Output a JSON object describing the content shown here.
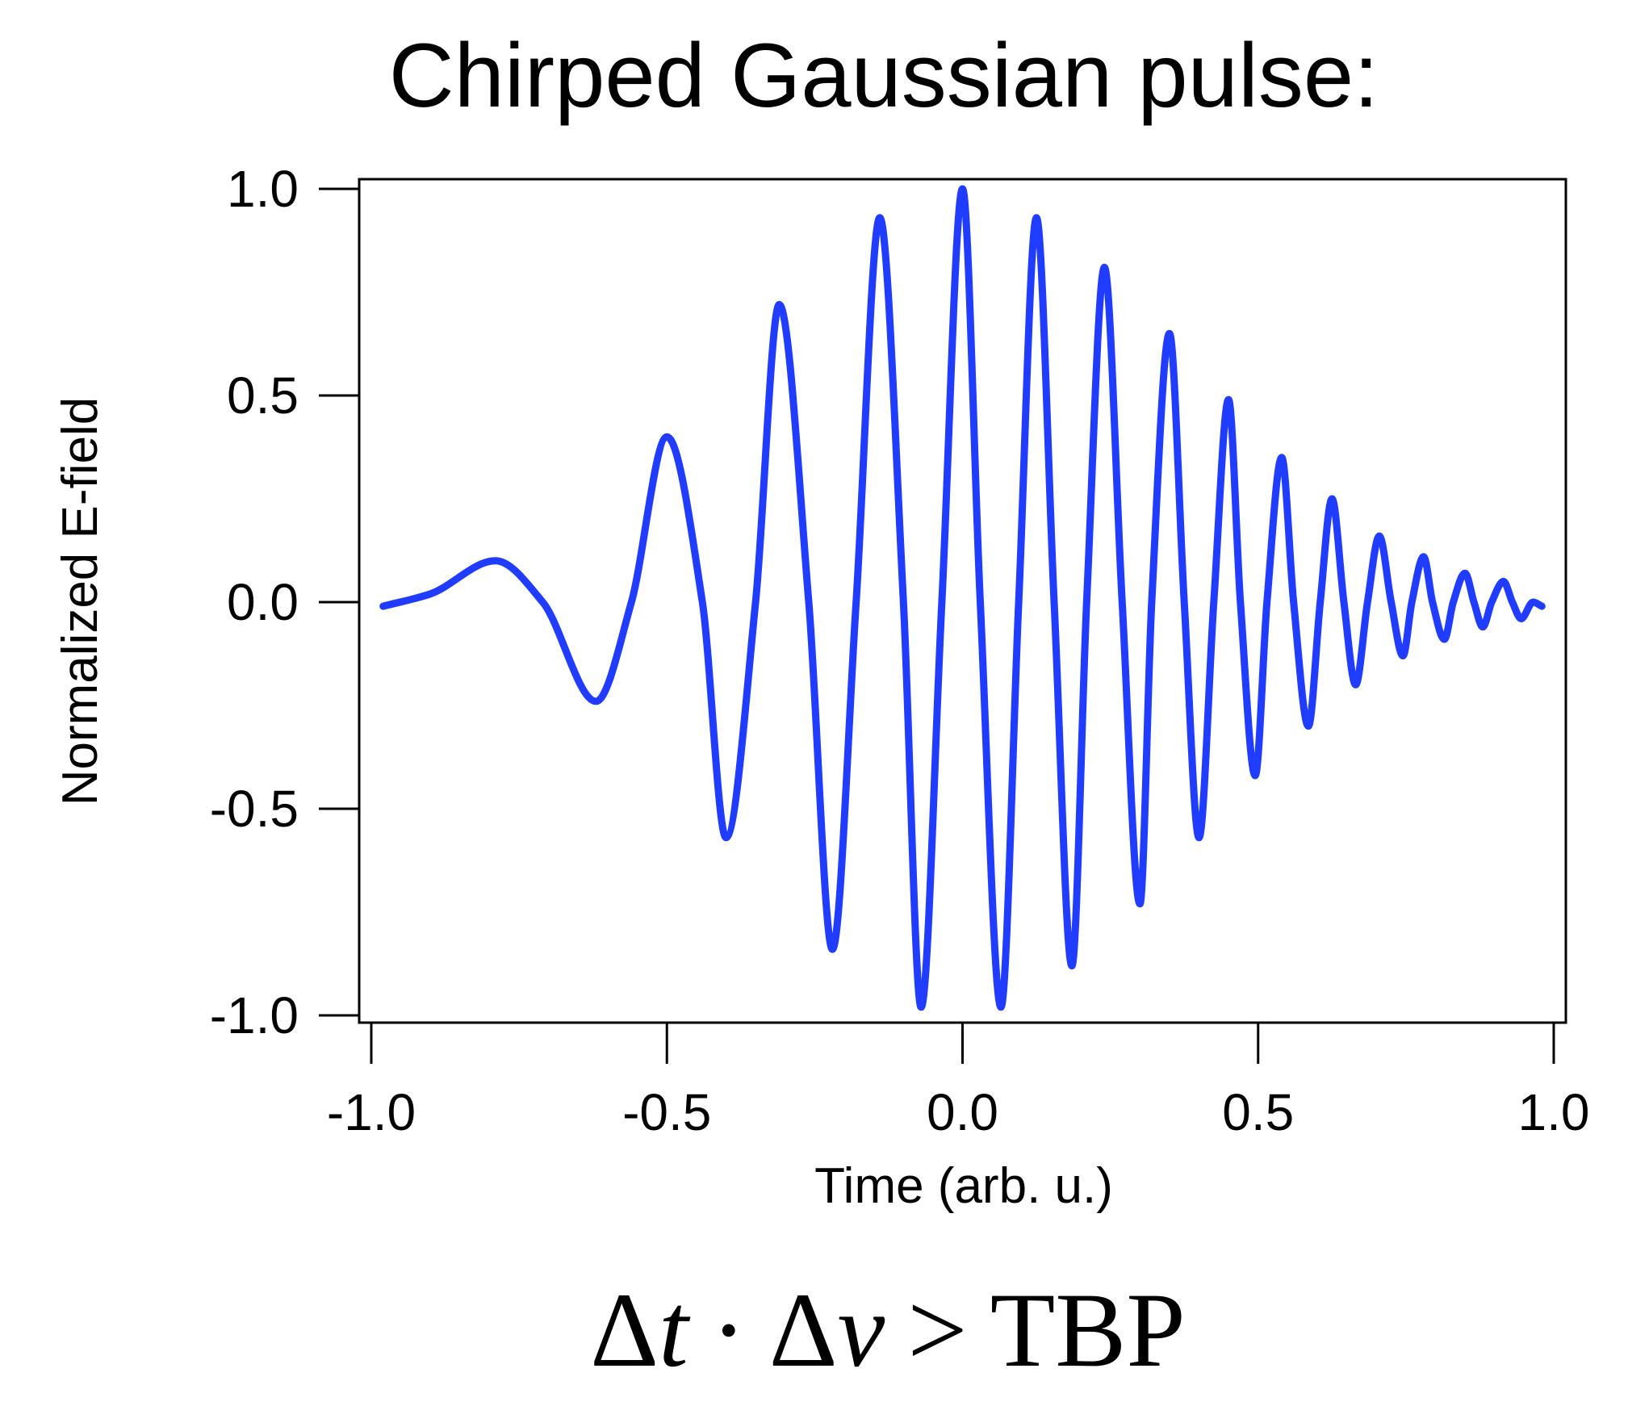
{
  "chart_data": {
    "type": "line",
    "title": "Chirped Gaussian pulse:",
    "xlabel": "Time (arb. u.)",
    "ylabel": "Normalized E-field",
    "xlim": [
      -1.0,
      1.0
    ],
    "ylim": [
      -1.0,
      1.0
    ],
    "x_ticks": [
      "-1.0",
      "-0.5",
      "0.0",
      "0.5",
      "1.0"
    ],
    "y_ticks": [
      "1.0",
      "0.5",
      "0.0",
      "-0.5",
      "-1.0"
    ],
    "grid": false,
    "series": [
      {
        "color": "#1f3cff",
        "points": [
          [
            -0.98,
            -0.01
          ],
          [
            -0.9,
            0.02
          ],
          [
            -0.79,
            0.1
          ],
          [
            -0.71,
            0.0
          ],
          [
            -0.62,
            -0.24
          ],
          [
            -0.56,
            0.0
          ],
          [
            -0.5,
            0.4
          ],
          [
            -0.44,
            0.0
          ],
          [
            -0.4,
            -0.57
          ],
          [
            -0.35,
            0.0
          ],
          [
            -0.31,
            0.72
          ],
          [
            -0.26,
            0.0
          ],
          [
            -0.22,
            -0.84
          ],
          [
            -0.18,
            0.0
          ],
          [
            -0.14,
            0.93
          ],
          [
            -0.1,
            0.0
          ],
          [
            -0.07,
            -0.98
          ],
          [
            -0.035,
            0.0
          ],
          [
            0.0,
            1.0
          ],
          [
            0.03,
            0.0
          ],
          [
            0.065,
            -0.98
          ],
          [
            0.095,
            0.0
          ],
          [
            0.125,
            0.93
          ],
          [
            0.155,
            0.0
          ],
          [
            0.185,
            -0.88
          ],
          [
            0.21,
            0.0
          ],
          [
            0.24,
            0.81
          ],
          [
            0.27,
            0.0
          ],
          [
            0.3,
            -0.73
          ],
          [
            0.32,
            0.0
          ],
          [
            0.35,
            0.65
          ],
          [
            0.375,
            0.0
          ],
          [
            0.4,
            -0.57
          ],
          [
            0.425,
            0.0
          ],
          [
            0.45,
            0.49
          ],
          [
            0.47,
            0.0
          ],
          [
            0.495,
            -0.42
          ],
          [
            0.515,
            0.0
          ],
          [
            0.54,
            0.35
          ],
          [
            0.56,
            0.0
          ],
          [
            0.585,
            -0.3
          ],
          [
            0.605,
            0.0
          ],
          [
            0.625,
            0.25
          ],
          [
            0.645,
            0.0
          ],
          [
            0.665,
            -0.2
          ],
          [
            0.685,
            0.0
          ],
          [
            0.705,
            0.16
          ],
          [
            0.725,
            0.0
          ],
          [
            0.745,
            -0.13
          ],
          [
            0.76,
            0.0
          ],
          [
            0.78,
            0.11
          ],
          [
            0.795,
            0.0
          ],
          [
            0.815,
            -0.09
          ],
          [
            0.83,
            0.0
          ],
          [
            0.85,
            0.07
          ],
          [
            0.865,
            0.0
          ],
          [
            0.88,
            -0.06
          ],
          [
            0.895,
            0.0
          ],
          [
            0.915,
            0.05
          ],
          [
            0.93,
            0.0
          ],
          [
            0.945,
            -0.04
          ],
          [
            0.965,
            0.0
          ],
          [
            0.98,
            -0.01
          ]
        ]
      }
    ]
  },
  "formula": {
    "delta_t_delta": "Δ",
    "delta_t_var": "t",
    "dot": "·",
    "delta_nu_delta": "Δ",
    "delta_nu_var": "ν",
    "gt": ">",
    "tbp": "TBP"
  }
}
